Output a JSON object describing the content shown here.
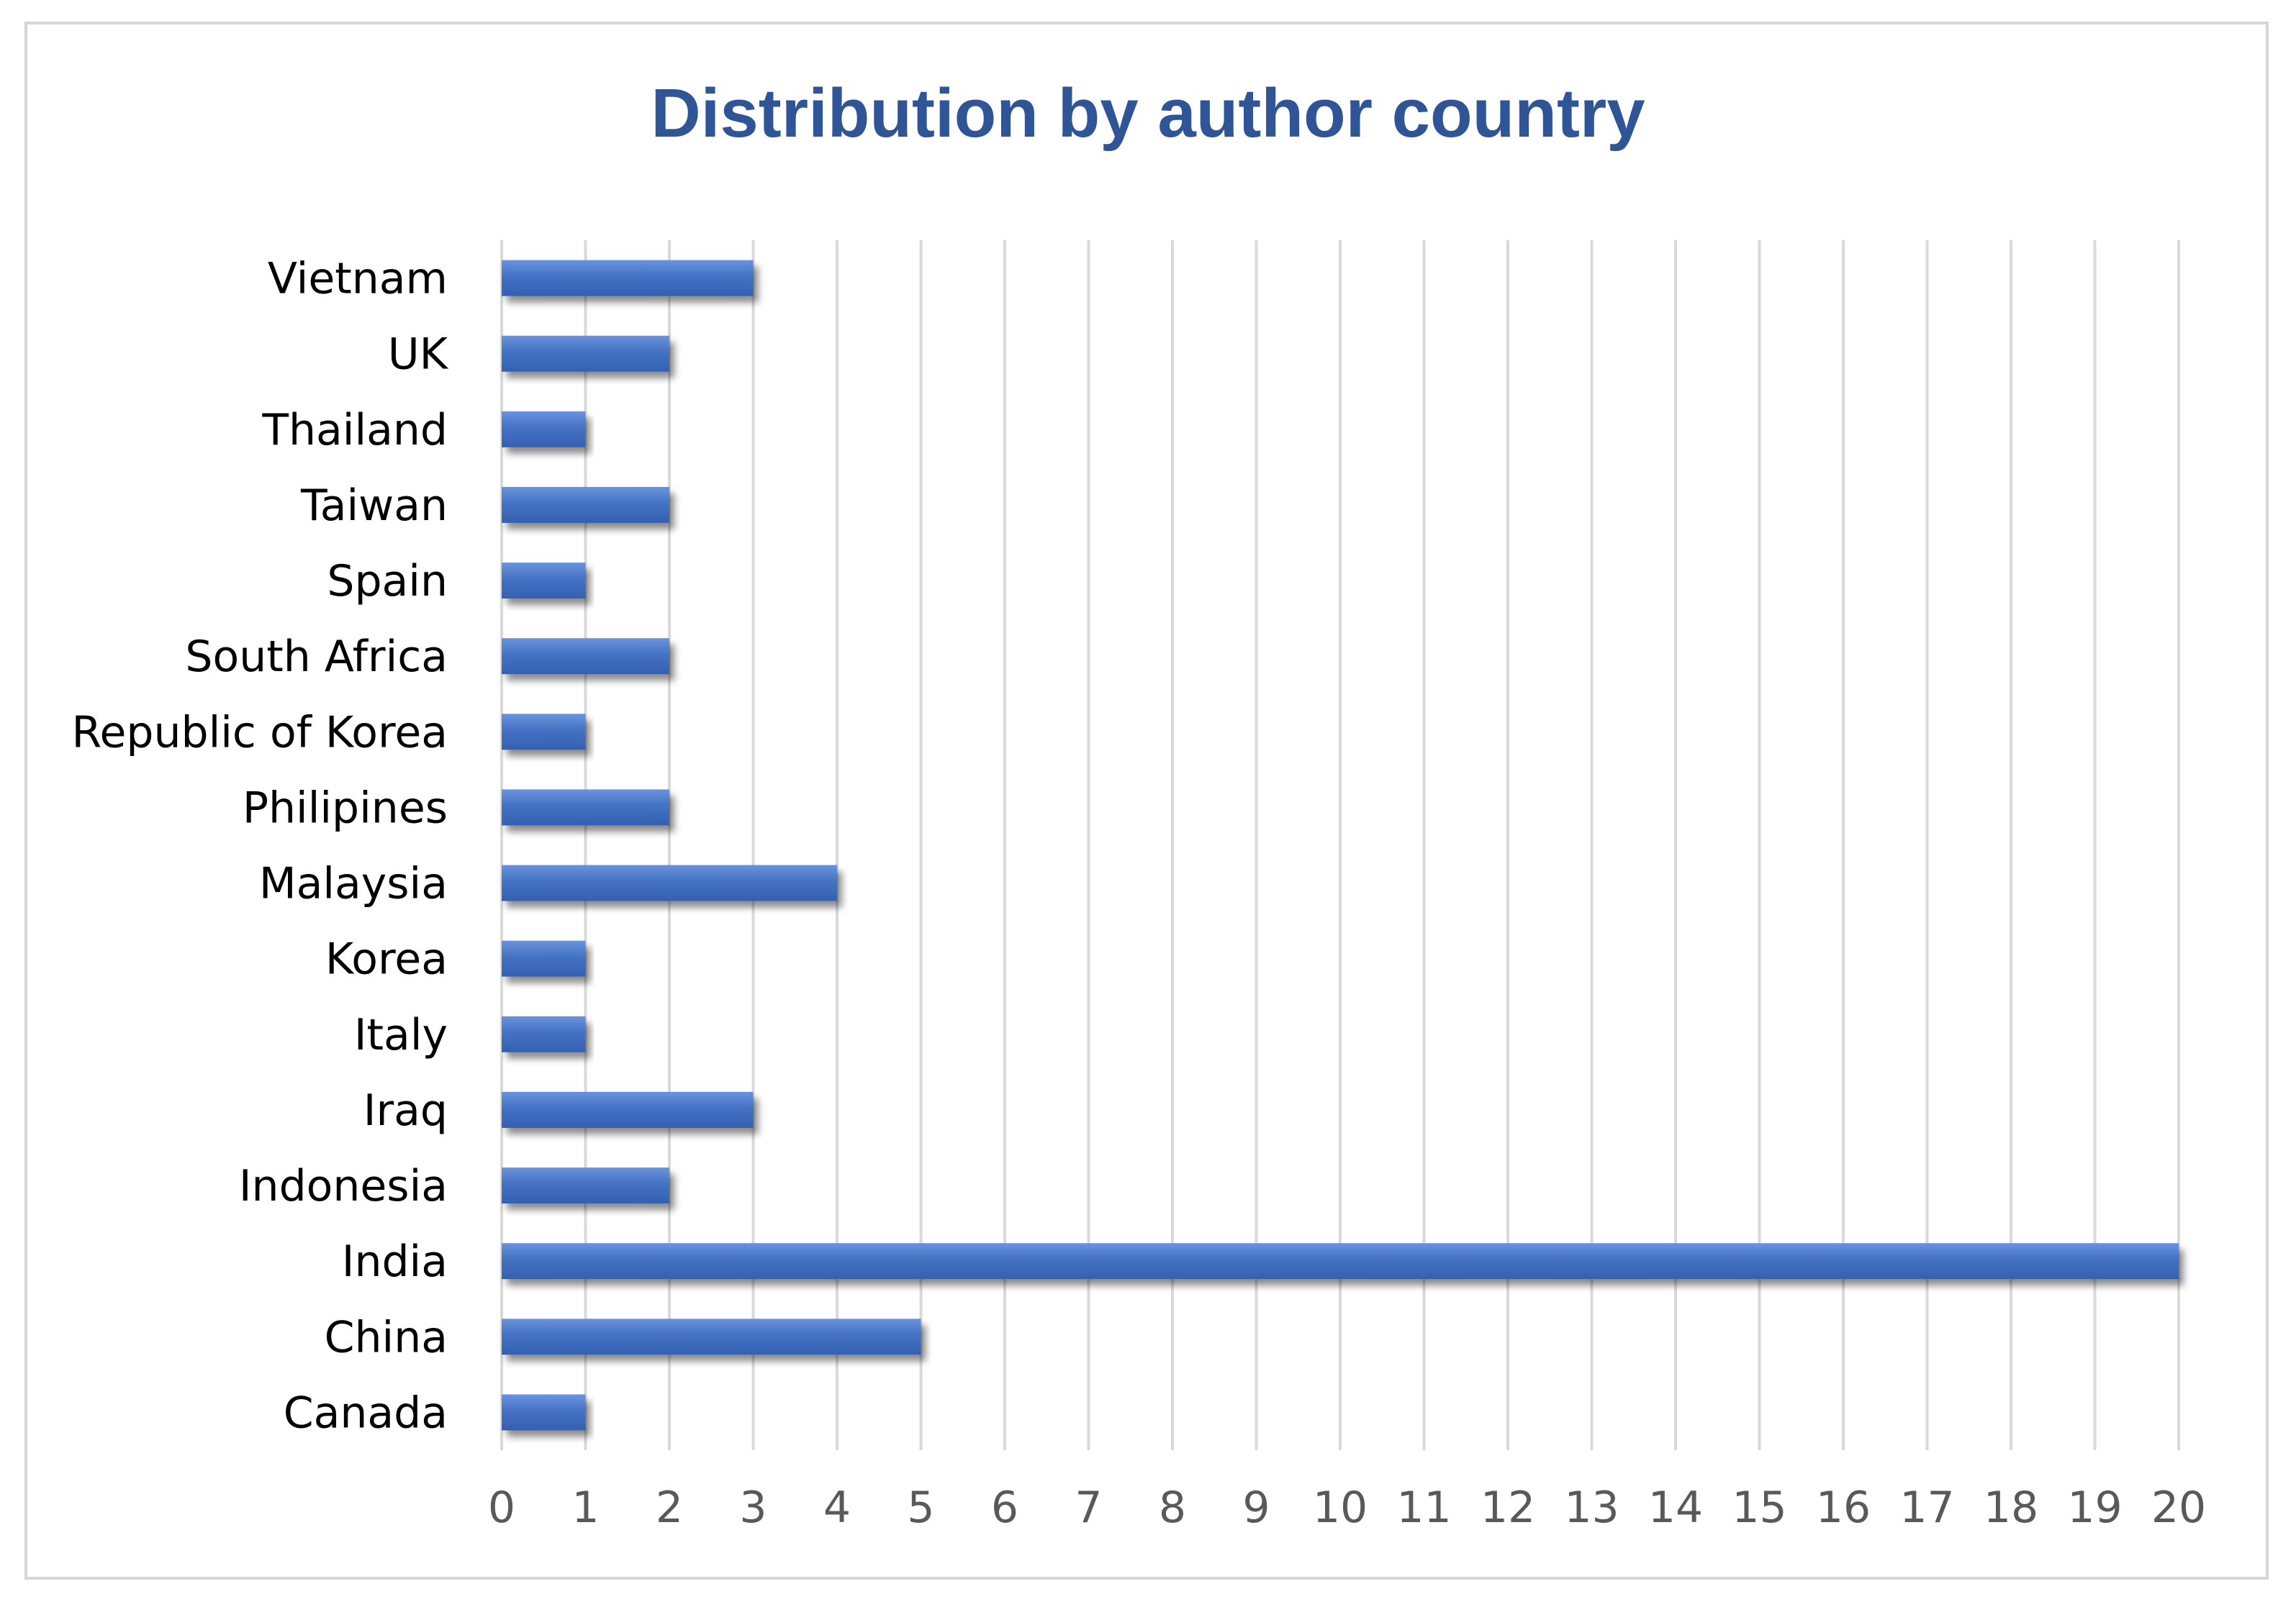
{
  "chart_data": {
    "type": "bar",
    "orientation": "horizontal",
    "title": "Distribution by author country",
    "xlabel": "",
    "ylabel": "",
    "categories": [
      "Vietnam",
      "UK",
      "Thailand",
      "Taiwan",
      "Spain",
      "South Africa",
      "Republic of Korea",
      "Philipines ",
      "Malaysia",
      "Korea",
      "Italy",
      "Iraq",
      "Indonesia",
      "India",
      "China",
      "Canada"
    ],
    "values": [
      3,
      2,
      1,
      2,
      1,
      2,
      1,
      2,
      4,
      1,
      1,
      3,
      2,
      20,
      5,
      1
    ],
    "xlim": [
      0,
      20
    ],
    "xticks": [
      0,
      1,
      2,
      3,
      4,
      5,
      6,
      7,
      8,
      9,
      10,
      11,
      12,
      13,
      14,
      15,
      16,
      17,
      18,
      19,
      20
    ],
    "grid": "vertical",
    "legend": "none",
    "colors": {
      "bar": "#4472c4",
      "bar_light": "#6a93dc",
      "bar_dark": "#3560b0",
      "title": "#2f5597",
      "grid": "#d9d9d9",
      "tick_text": "#595959",
      "category_text": "#000000",
      "frame": "#d6d6d6"
    }
  }
}
